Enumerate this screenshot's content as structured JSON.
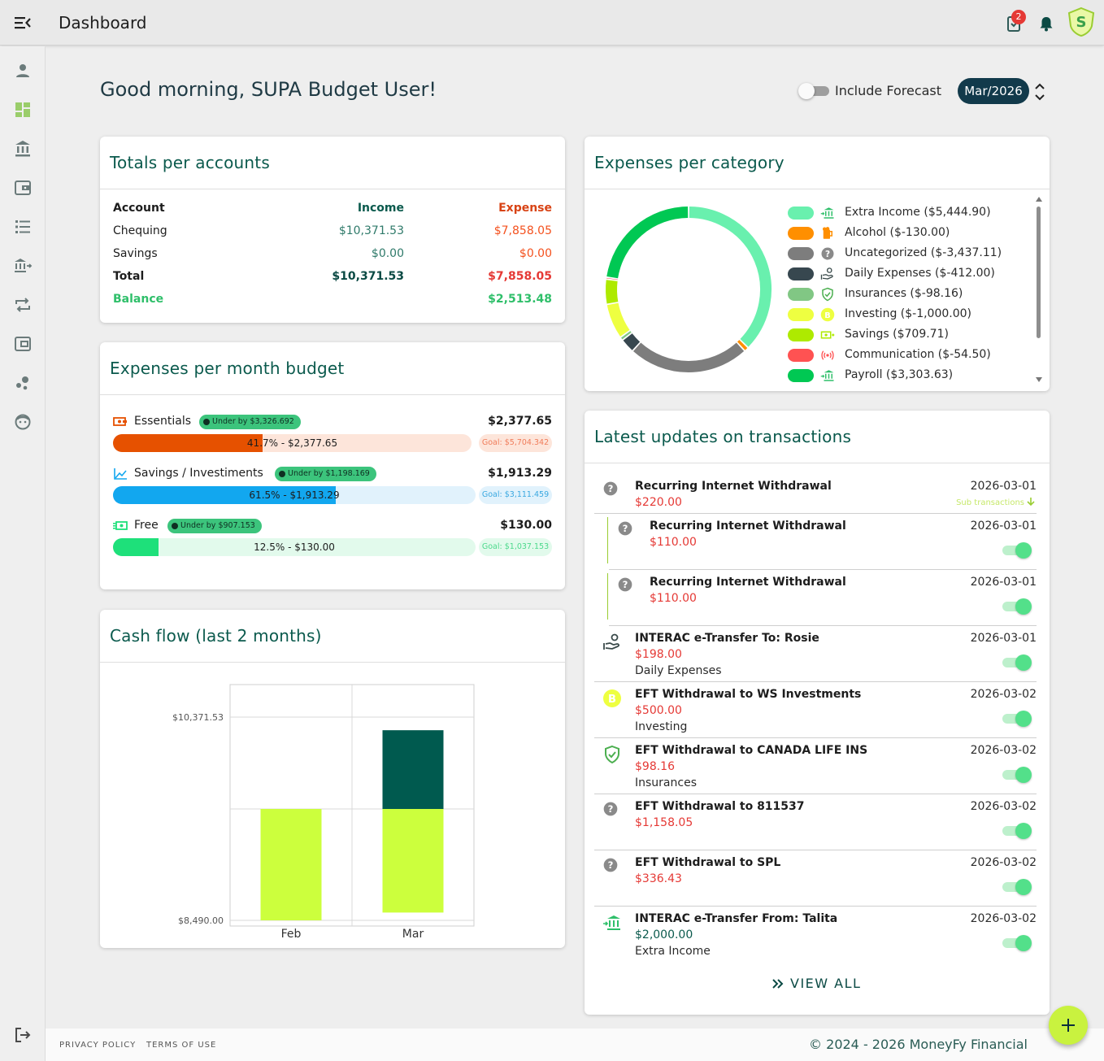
{
  "header": {
    "title": "Dashboard",
    "notifications_count": "2"
  },
  "sidebar": {
    "items": [
      "profile-icon",
      "dashboard-icon",
      "bank-icon",
      "wallet-icon",
      "list-icon",
      "transfer-bank-icon",
      "repeat-icon",
      "wallet-card-icon",
      "bubbles-icon",
      "support-icon"
    ],
    "logout_icon": "logout-icon"
  },
  "greeting": "Good morning, SUPA Budget User!",
  "forecast": {
    "label": "Include Forecast",
    "enabled": false
  },
  "month_selector": {
    "value": "Mar/2026"
  },
  "totals": {
    "title": "Totals per accounts",
    "columns": {
      "account": "Account",
      "income": "Income",
      "expense": "Expense"
    },
    "rows": [
      {
        "account": "Chequing",
        "income": "$10,371.53",
        "expense": "$7,858.05"
      },
      {
        "account": "Savings",
        "income": "$0.00",
        "expense": "$0.00"
      }
    ],
    "total": {
      "label": "Total",
      "income": "$10,371.53",
      "expense": "$7,858.05"
    },
    "balance": {
      "label": "Balance",
      "value": "$2,513.48"
    }
  },
  "budget": {
    "title": "Expenses per month budget",
    "items": [
      {
        "label": "Essentials",
        "chip": "Under by $3,326.692",
        "amount": "$2,377.65",
        "bar_text": "41.7% - $2,377.65",
        "goal": "Goal: $5,704.342",
        "progress": 0.417,
        "fill_color": "#e65100",
        "track_color": "#fde5da",
        "goal_bg": "#fde5da",
        "goal_color": "#f07c5a",
        "icon": "cash-icon"
      },
      {
        "label": "Savings / Investiments",
        "chip": "Under by $1,198.169",
        "amount": "$1,913.29",
        "bar_text": "61.5% - $1,913.29",
        "goal": "Goal: $3,111.459",
        "progress": 0.615,
        "fill_color": "#12a7ef",
        "track_color": "#e1f2fc",
        "goal_bg": "#e1f2fc",
        "goal_color": "#3aa8e0",
        "icon": "trend-icon"
      },
      {
        "label": "Free",
        "chip": "Under by $907.153",
        "amount": "$130.00",
        "bar_text": "12.5% - $130.00",
        "goal": "Goal: $1,037.153",
        "progress": 0.125,
        "fill_color": "#1ee07a",
        "track_color": "#e2faec",
        "goal_bg": "#e2faec",
        "goal_color": "#4cd98c",
        "icon": "money-icon"
      }
    ]
  },
  "categories": {
    "title": "Expenses per category",
    "items": [
      {
        "label": "Extra Income ($5,444.90)",
        "color": "#69f0ae",
        "icon": "bank-in-icon",
        "value": 5444.9
      },
      {
        "label": "Alcohol ($-130.00)",
        "color": "#ff8f00",
        "icon": "beer-icon",
        "value": 130.0
      },
      {
        "label": "Uncategorized ($-3,437.11)",
        "color": "#7d7d7d",
        "icon": "question-icon",
        "value": 3437.11
      },
      {
        "label": "Daily Expenses ($-412.00)",
        "color": "#37474f",
        "icon": "hand-cash-icon",
        "value": 412.0
      },
      {
        "label": "Insurances ($-98.16)",
        "color": "#81c784",
        "icon": "shield-check-icon",
        "value": 98.16
      },
      {
        "label": "Investing ($-1,000.00)",
        "color": "#eeff41",
        "icon": "bitcoin-icon",
        "value": 1000.0
      },
      {
        "label": "Savings ($709.71)",
        "color": "#aeea00",
        "icon": "savings-icon",
        "value": 709.71
      },
      {
        "label": "Communication ($-54.50)",
        "color": "#ff5252",
        "icon": "broadcast-icon",
        "value": 54.5
      },
      {
        "label": "Payroll ($3,303.63)",
        "color": "#00c853",
        "icon": "bank-in-icon",
        "value": 3303.63
      }
    ]
  },
  "cashflow": {
    "title": "Cash flow (last 2 months)",
    "chart_data": {
      "type": "bar",
      "categories": [
        "Feb",
        "Mar"
      ],
      "series": [
        {
          "values": [
            9500,
            10250
          ],
          "color": "#005a4f"
        },
        {
          "values": [
            9450,
            9000
          ],
          "color": "#ccff3d"
        }
      ],
      "ylim": [
        8490.0,
        10371.53
      ],
      "ytick_labels": [
        "$10,371.53",
        "$8,490.00"
      ],
      "grid": true
    }
  },
  "updates": {
    "title": "Latest updates on transactions",
    "sub_transactions_label": "Sub transactions",
    "rows": [
      {
        "title": "Recurring Internet Withdrawal",
        "amount": "$220.00",
        "date": "2026-03-01",
        "category": "",
        "icon": "question-icon",
        "amount_color": "#e53935",
        "has_toggle": false,
        "indent": false,
        "has_sub": true
      },
      {
        "title": "Recurring Internet Withdrawal",
        "amount": "$110.00",
        "date": "2026-03-01",
        "category": "",
        "icon": "question-icon",
        "amount_color": "#e53935",
        "has_toggle": true,
        "indent": true,
        "has_sub": false
      },
      {
        "title": "Recurring Internet Withdrawal",
        "amount": "$110.00",
        "date": "2026-03-01",
        "category": "",
        "icon": "question-icon",
        "amount_color": "#e53935",
        "has_toggle": true,
        "indent": true,
        "has_sub": false
      },
      {
        "title": "INTERAC e-Transfer To: Rosie",
        "amount": "$198.00",
        "date": "2026-03-01",
        "category": "Daily Expenses",
        "icon": "hand-cash-icon",
        "amount_color": "#e53935",
        "has_toggle": true,
        "indent": false,
        "has_sub": false
      },
      {
        "title": "EFT Withdrawal to WS Investments",
        "amount": "$500.00",
        "date": "2026-03-02",
        "category": "Investing",
        "icon": "bitcoin-icon",
        "amount_color": "#e53935",
        "has_toggle": true,
        "indent": false,
        "has_sub": false
      },
      {
        "title": "EFT Withdrawal to CANADA LIFE INS",
        "amount": "$98.16",
        "date": "2026-03-02",
        "category": "Insurances",
        "icon": "shield-check-icon",
        "amount_color": "#e53935",
        "has_toggle": true,
        "indent": false,
        "has_sub": false
      },
      {
        "title": "EFT Withdrawal to 811537",
        "amount": "$1,158.05",
        "date": "2026-03-02",
        "category": "",
        "icon": "question-icon",
        "amount_color": "#e53935",
        "has_toggle": true,
        "indent": false,
        "has_sub": false
      },
      {
        "title": "EFT Withdrawal to SPL",
        "amount": "$336.43",
        "date": "2026-03-02",
        "category": "",
        "icon": "question-icon",
        "amount_color": "#e53935",
        "has_toggle": true,
        "indent": false,
        "has_sub": false
      },
      {
        "title": "INTERAC e-Transfer From: Talita",
        "amount": "$2,000.00",
        "date": "2026-03-02",
        "category": "Extra Income",
        "icon": "bank-in-icon",
        "amount_color": "#0b5a4d",
        "has_toggle": true,
        "indent": false,
        "has_sub": false
      }
    ],
    "view_all": "VIEW ALL"
  },
  "footer": {
    "privacy": "PRIVACY POLICY",
    "terms": "TERMS OF USE",
    "copyright": "© 2024 - 2026 MoneyFy Financial"
  }
}
